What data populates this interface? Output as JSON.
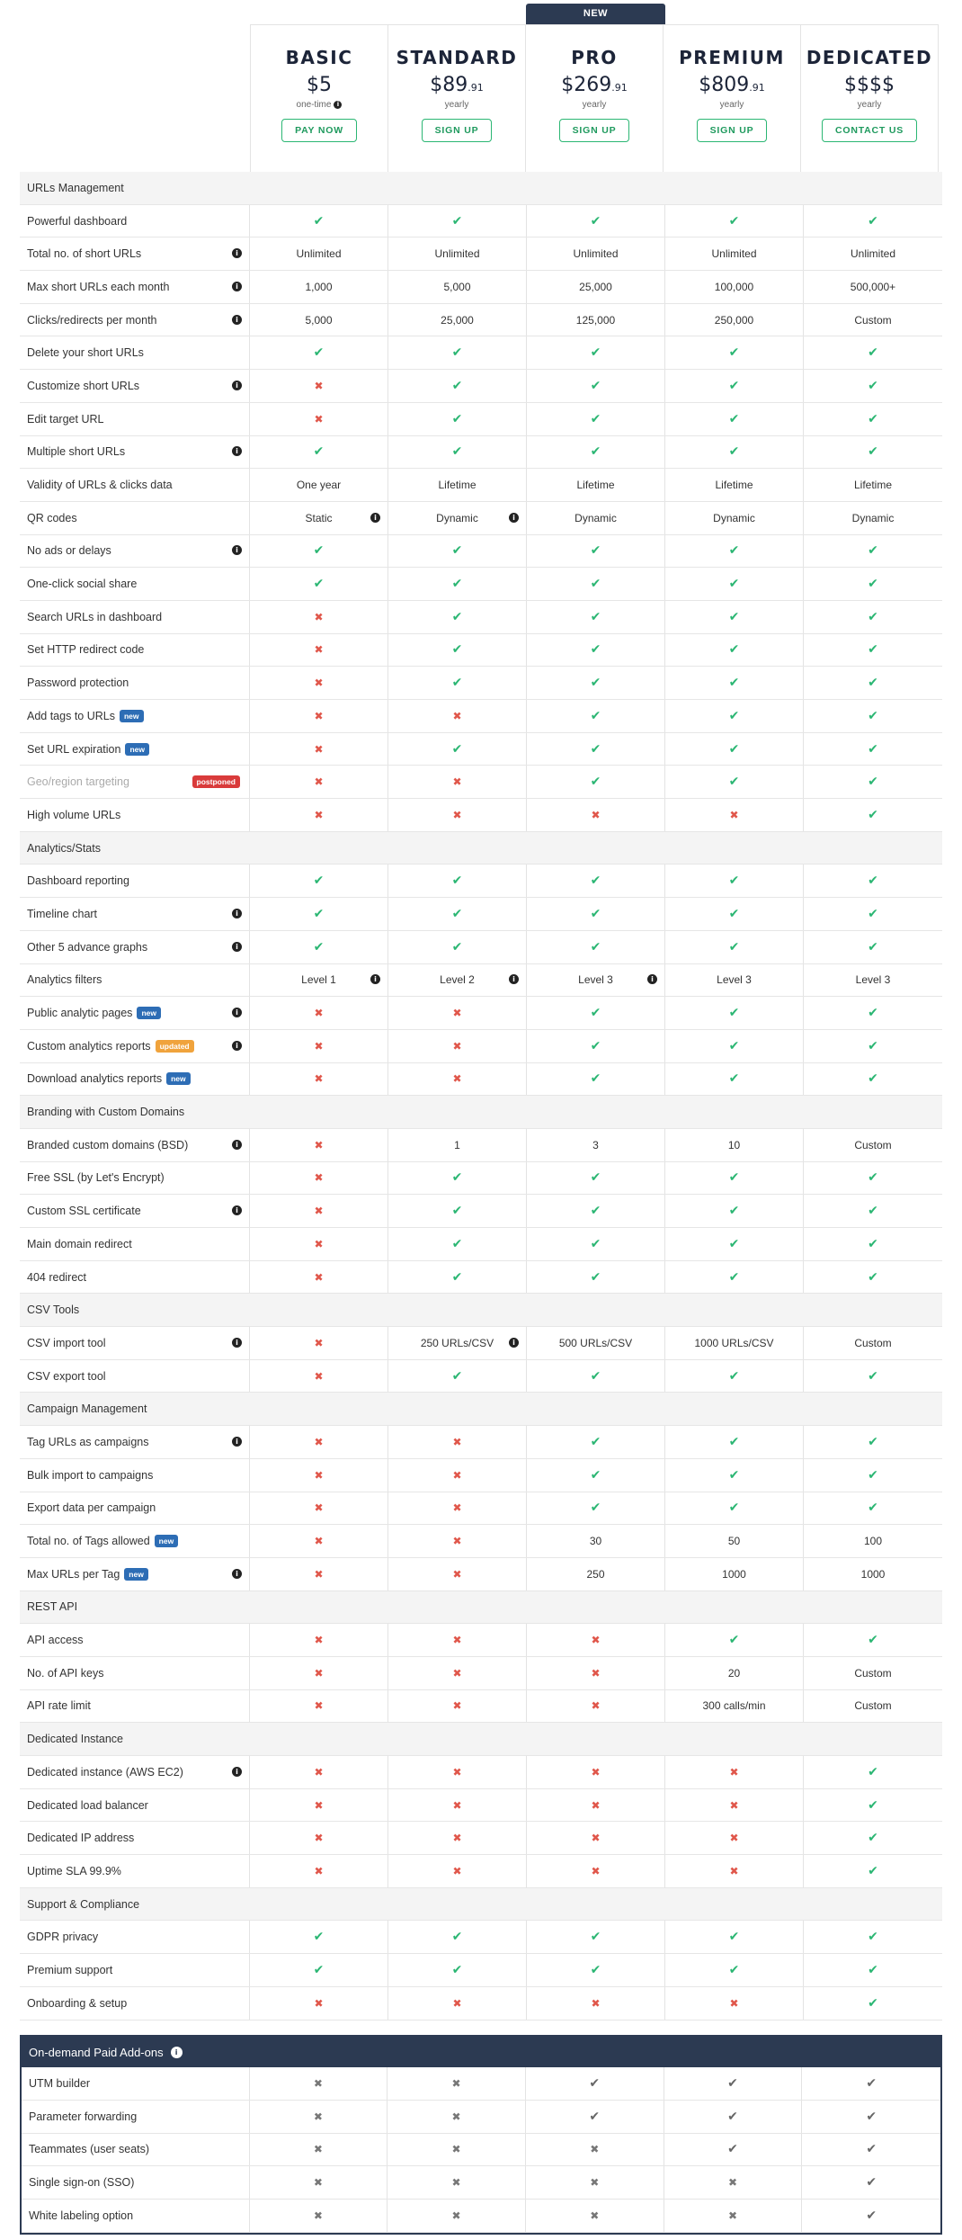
{
  "new_tab": "NEW",
  "plans": [
    {
      "name": "BASIC",
      "price": "$5",
      "cents": "",
      "period": "one-time",
      "cta": "PAY NOW"
    },
    {
      "name": "STANDARD",
      "price": "$89",
      "cents": ".91",
      "period": "yearly",
      "cta": "SIGN UP"
    },
    {
      "name": "PRO",
      "price": "$269",
      "cents": ".91",
      "period": "yearly",
      "cta": "SIGN UP"
    },
    {
      "name": "PREMIUM",
      "price": "$809",
      "cents": ".91",
      "period": "yearly",
      "cta": "SIGN UP"
    },
    {
      "name": "DEDICATED",
      "price": "$$$$",
      "cents": "",
      "period": "yearly",
      "cta": "CONTACT US"
    }
  ],
  "rows": [
    {
      "section": "URLs Management"
    },
    {
      "label": "Powerful dashboard",
      "info": false,
      "values": [
        "y",
        "y",
        "y",
        "y",
        "y"
      ]
    },
    {
      "label": "Total no. of short URLs",
      "info": true,
      "values": [
        "Unlimited",
        "Unlimited",
        "Unlimited",
        "Unlimited",
        "Unlimited"
      ]
    },
    {
      "label": "Max short URLs each month",
      "info": true,
      "values": [
        "1,000",
        "5,000",
        "25,000",
        "100,000",
        "500,000+"
      ]
    },
    {
      "label": "Clicks/redirects per month",
      "info": true,
      "values": [
        "5,000",
        "25,000",
        "125,000",
        "250,000",
        "Custom"
      ]
    },
    {
      "label": "Delete your short URLs",
      "info": false,
      "values": [
        "y",
        "y",
        "y",
        "y",
        "y"
      ]
    },
    {
      "label": "Customize short URLs",
      "info": true,
      "values": [
        "n",
        "y",
        "y",
        "y",
        "y"
      ]
    },
    {
      "label": "Edit target URL",
      "info": false,
      "values": [
        "n",
        "y",
        "y",
        "y",
        "y"
      ]
    },
    {
      "label": "Multiple short URLs",
      "info": true,
      "values": [
        "y",
        "y",
        "y",
        "y",
        "y"
      ]
    },
    {
      "label": "Validity of URLs & clicks data",
      "info": false,
      "values": [
        "One year",
        "Lifetime",
        "Lifetime",
        "Lifetime",
        "Lifetime"
      ]
    },
    {
      "label": "QR codes",
      "info": false,
      "values": [
        "Static",
        "Dynamic",
        "Dynamic",
        "Dynamic",
        "Dynamic"
      ],
      "cell_info": [
        true,
        true,
        false,
        false,
        false
      ]
    },
    {
      "label": "No ads or delays",
      "info": true,
      "values": [
        "y",
        "y",
        "y",
        "y",
        "y"
      ]
    },
    {
      "label": "One-click social share",
      "info": false,
      "values": [
        "y",
        "y",
        "y",
        "y",
        "y"
      ]
    },
    {
      "label": "Search URLs in dashboard",
      "info": false,
      "values": [
        "n",
        "y",
        "y",
        "y",
        "y"
      ]
    },
    {
      "label": "Set HTTP redirect code",
      "info": false,
      "values": [
        "n",
        "y",
        "y",
        "y",
        "y"
      ]
    },
    {
      "label": "Password protection",
      "info": false,
      "values": [
        "n",
        "y",
        "y",
        "y",
        "y"
      ]
    },
    {
      "label": "Add tags to URLs",
      "badge": "new",
      "info": false,
      "values": [
        "n",
        "n",
        "y",
        "y",
        "y"
      ]
    },
    {
      "label": "Set URL expiration",
      "badge": "new",
      "info": false,
      "values": [
        "n",
        "y",
        "y",
        "y",
        "y"
      ]
    },
    {
      "label": "Geo/region targeting",
      "badge": "postponed",
      "muted": true,
      "info": false,
      "values": [
        "n",
        "n",
        "y",
        "y",
        "y"
      ]
    },
    {
      "label": "High volume URLs",
      "info": false,
      "values": [
        "n",
        "n",
        "n",
        "n",
        "y"
      ]
    },
    {
      "section": "Analytics/Stats"
    },
    {
      "label": "Dashboard reporting",
      "info": false,
      "values": [
        "y",
        "y",
        "y",
        "y",
        "y"
      ]
    },
    {
      "label": "Timeline chart",
      "info": true,
      "values": [
        "y",
        "y",
        "y",
        "y",
        "y"
      ]
    },
    {
      "label": "Other 5 advance graphs",
      "info": true,
      "values": [
        "y",
        "y",
        "y",
        "y",
        "y"
      ]
    },
    {
      "label": "Analytics filters",
      "info": false,
      "values": [
        "Level 1",
        "Level 2",
        "Level 3",
        "Level 3",
        "Level 3"
      ],
      "cell_info": [
        true,
        true,
        true,
        false,
        false
      ]
    },
    {
      "label": "Public analytic pages",
      "badge": "new",
      "info": true,
      "values": [
        "n",
        "n",
        "y",
        "y",
        "y"
      ]
    },
    {
      "label": "Custom analytics reports",
      "badge": "updated",
      "info": true,
      "values": [
        "n",
        "n",
        "y",
        "y",
        "y"
      ]
    },
    {
      "label": "Download analytics reports",
      "badge": "new",
      "info": false,
      "values": [
        "n",
        "n",
        "y",
        "y",
        "y"
      ]
    },
    {
      "section": "Branding with Custom Domains"
    },
    {
      "label": "Branded custom domains (BSD)",
      "info": true,
      "values": [
        "n",
        "1",
        "3",
        "10",
        "Custom"
      ]
    },
    {
      "label": "Free SSL (by Let's Encrypt)",
      "info": false,
      "values": [
        "n",
        "y",
        "y",
        "y",
        "y"
      ]
    },
    {
      "label": "Custom SSL certificate",
      "info": true,
      "values": [
        "n",
        "y",
        "y",
        "y",
        "y"
      ]
    },
    {
      "label": "Main domain redirect",
      "info": false,
      "values": [
        "n",
        "y",
        "y",
        "y",
        "y"
      ]
    },
    {
      "label": "404 redirect",
      "info": false,
      "values": [
        "n",
        "y",
        "y",
        "y",
        "y"
      ]
    },
    {
      "section": "CSV Tools"
    },
    {
      "label": "CSV import tool",
      "info": true,
      "values": [
        "n",
        "250 URLs/CSV",
        "500 URLs/CSV",
        "1000 URLs/CSV",
        "Custom"
      ],
      "cell_info": [
        false,
        true,
        false,
        false,
        false
      ]
    },
    {
      "label": "CSV export tool",
      "info": false,
      "values": [
        "n",
        "y",
        "y",
        "y",
        "y"
      ]
    },
    {
      "section": "Campaign Management"
    },
    {
      "label": "Tag URLs as campaigns",
      "info": true,
      "values": [
        "n",
        "n",
        "y",
        "y",
        "y"
      ]
    },
    {
      "label": "Bulk import to campaigns",
      "info": false,
      "values": [
        "n",
        "n",
        "y",
        "y",
        "y"
      ]
    },
    {
      "label": "Export data per campaign",
      "info": false,
      "values": [
        "n",
        "n",
        "y",
        "y",
        "y"
      ]
    },
    {
      "label": "Total no. of Tags allowed",
      "badge": "new",
      "info": false,
      "values": [
        "n",
        "n",
        "30",
        "50",
        "100"
      ]
    },
    {
      "label": "Max URLs per Tag",
      "badge": "new",
      "info": true,
      "values": [
        "n",
        "n",
        "250",
        "1000",
        "1000"
      ]
    },
    {
      "section": "REST API"
    },
    {
      "label": "API access",
      "info": false,
      "values": [
        "n",
        "n",
        "n",
        "y",
        "y"
      ]
    },
    {
      "label": "No. of API keys",
      "info": false,
      "values": [
        "n",
        "n",
        "n",
        "20",
        "Custom"
      ]
    },
    {
      "label": "API rate limit",
      "info": false,
      "values": [
        "n",
        "n",
        "n",
        "300 calls/min",
        "Custom"
      ]
    },
    {
      "section": "Dedicated Instance"
    },
    {
      "label": "Dedicated instance (AWS EC2)",
      "info": true,
      "values": [
        "n",
        "n",
        "n",
        "n",
        "y"
      ]
    },
    {
      "label": "Dedicated load balancer",
      "info": false,
      "values": [
        "n",
        "n",
        "n",
        "n",
        "y"
      ]
    },
    {
      "label": "Dedicated IP address",
      "info": false,
      "values": [
        "n",
        "n",
        "n",
        "n",
        "y"
      ]
    },
    {
      "label": "Uptime SLA 99.9%",
      "info": false,
      "values": [
        "n",
        "n",
        "n",
        "n",
        "y"
      ]
    },
    {
      "section": "Support & Compliance"
    },
    {
      "label": "GDPR privacy",
      "info": false,
      "values": [
        "y",
        "y",
        "y",
        "y",
        "y"
      ]
    },
    {
      "label": "Premium support",
      "info": false,
      "values": [
        "y",
        "y",
        "y",
        "y",
        "y"
      ]
    },
    {
      "label": "Onboarding & setup",
      "info": false,
      "values": [
        "n",
        "n",
        "n",
        "n",
        "y"
      ]
    }
  ],
  "addons": {
    "title": "On-demand Paid Add-ons",
    "rows": [
      {
        "label": "UTM builder",
        "values": [
          "n",
          "n",
          "y",
          "y",
          "y"
        ]
      },
      {
        "label": "Parameter forwarding",
        "values": [
          "n",
          "n",
          "y",
          "y",
          "y"
        ]
      },
      {
        "label": "Teammates (user seats)",
        "values": [
          "n",
          "n",
          "n",
          "y",
          "y"
        ]
      },
      {
        "label": "Single sign-on (SSO)",
        "values": [
          "n",
          "n",
          "n",
          "n",
          "y"
        ]
      },
      {
        "label": "White labeling option",
        "values": [
          "n",
          "n",
          "n",
          "n",
          "y"
        ]
      }
    ]
  },
  "icons": {
    "check": "check-icon",
    "cross": "cross-icon",
    "info": "info-icon"
  },
  "colors": {
    "check": "#2bb673",
    "cross": "#e0574b",
    "header": "#2c3a52",
    "badge_new": "#2d6db5",
    "badge_updated": "#f0a33c",
    "badge_postponed": "#d93b3b"
  }
}
